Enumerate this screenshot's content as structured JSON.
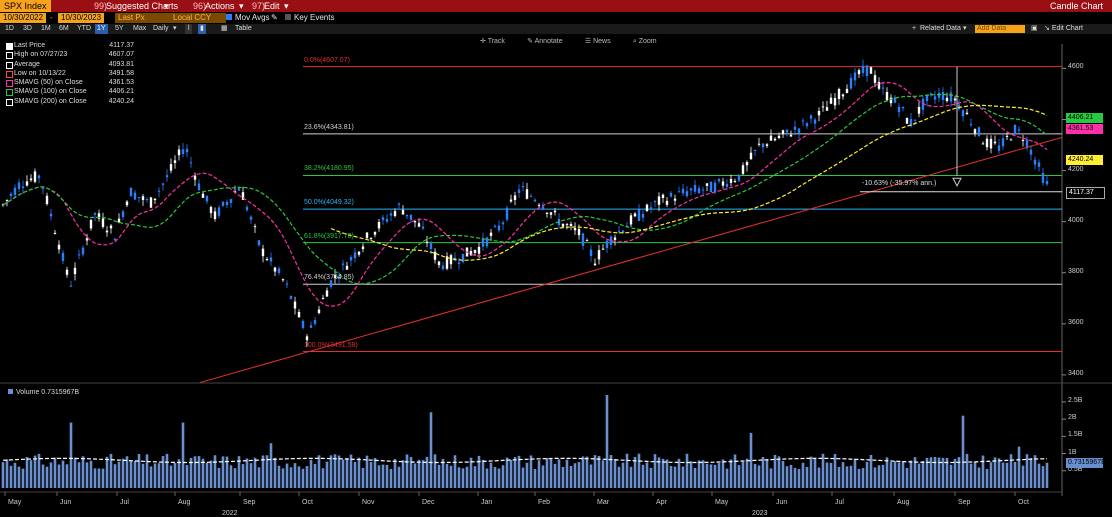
{
  "titlebar": {
    "ticker": "SPX Index",
    "menu1_num": "99)",
    "menu1": "Suggested Charts",
    "menu2_num": "96)",
    "menu2": "Actions",
    "menu3_num": "97)",
    "menu3": "Edit",
    "right_title": "Candle Chart"
  },
  "controls": {
    "start_date": "10/30/2022",
    "end_date": "10/30/2023",
    "field": "Last Px",
    "currency": "Local CCY",
    "mov_avgs": "Mov Avgs",
    "key_events": "Key Events"
  },
  "periods": [
    "1D",
    "3D",
    "1M",
    "6M",
    "YTD",
    "1Y",
    "5Y",
    "Max"
  ],
  "selected_period": "1Y",
  "frequency": "Daily",
  "table_label": "Table",
  "related_data": "Related Data",
  "add_data": "Add Data",
  "edit_chart": "Edit Chart",
  "tools": [
    "Track",
    "Annotate",
    "News",
    "Zoom"
  ],
  "legend": [
    {
      "label": "Last Price",
      "value": "4117.37",
      "color": "#ffffff"
    },
    {
      "label": "High on 07/27/23",
      "value": "4607.07",
      "color": "#ffffff"
    },
    {
      "label": "Average",
      "value": "4093.81",
      "color": "#ffffff"
    },
    {
      "label": "Low on 10/13/22",
      "value": "3491.58",
      "color": "#ff4040"
    },
    {
      "label": "SMAVG (50)  on Close",
      "value": "4361.53",
      "color": "#ff2fa8"
    },
    {
      "label": "SMAVG (100)  on Close",
      "value": "4406.21",
      "color": "#27c93f"
    },
    {
      "label": "SMAVG (200)  on Close",
      "value": "4240.24",
      "color": "#ffffff"
    }
  ],
  "fib_levels": [
    {
      "label": "0.0%(4607.07)",
      "value": 4607.07,
      "color": "#e03030"
    },
    {
      "label": "23.6%(4343.81)",
      "value": 4343.81,
      "color": "#cfcfcf"
    },
    {
      "label": "38.2%(4180.95)",
      "value": 4180.95,
      "color": "#27c93f"
    },
    {
      "label": "50.0%(4049.32)",
      "value": 4049.32,
      "color": "#29b6f6"
    },
    {
      "label": "61.8%(3917.70)",
      "value": 3917.7,
      "color": "#27c93f"
    },
    {
      "label": "76.4%(3754.85)",
      "value": 3754.85,
      "color": "#cfcfcf"
    },
    {
      "label": "100.0%(3491.58)",
      "value": 3491.58,
      "color": "#e03030"
    }
  ],
  "annotation": "-10.63% (-35.97% ann.)",
  "price_axis": {
    "ticks": [
      "4600",
      "4400",
      "4200",
      "4000",
      "3800",
      "3600",
      "3400"
    ],
    "min": 3380,
    "max": 4680
  },
  "price_boxes": [
    {
      "label": "4406.21",
      "value": 4406.21,
      "color": "#27c93f"
    },
    {
      "label": "4361.53",
      "value": 4361.53,
      "color": "#ff2fa8"
    },
    {
      "label": "4240.24",
      "value": 4240.24,
      "color": "#ffee33"
    },
    {
      "label": "4117.37",
      "value": 4117.37,
      "color": "#000000",
      "text": "#ffffff"
    }
  ],
  "volume": {
    "header": "Volume  0.7315967B",
    "ticks": [
      "2.5B",
      "2B",
      "1.5B",
      "1B",
      "0.5B"
    ],
    "current_label": "0.7315967B"
  },
  "months": [
    "May",
    "Jun",
    "Jul",
    "Aug",
    "Sep",
    "Oct",
    "Nov",
    "Dec",
    "Jan",
    "Feb",
    "Mar",
    "Apr",
    "May",
    "Jun",
    "Jul",
    "Aug",
    "Sep",
    "Oct"
  ],
  "years": [
    "2022",
    "2023"
  ],
  "colors": {
    "up": "#ffffff",
    "down": "#2a7fff",
    "titlebar": "#9a0f14",
    "accent": "#f7a21b"
  }
}
